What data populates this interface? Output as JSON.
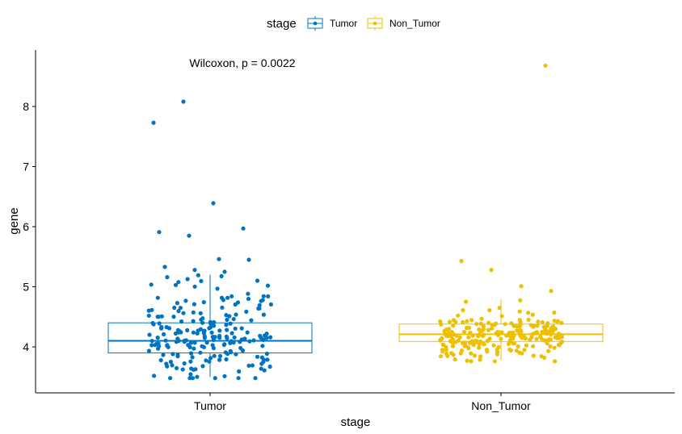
{
  "chart_data": {
    "type": "box",
    "title": "",
    "xlabel": "stage",
    "ylabel": "gene",
    "categories": [
      "Tumor",
      "Non_Tumor"
    ],
    "ylim": [
      3.3,
      8.95
    ],
    "yticks": [
      4,
      5,
      6,
      7,
      8
    ],
    "grid": false,
    "annotation": "Wilcoxon, p = 0.0022",
    "legend": {
      "title": "stage",
      "position": "top",
      "entries": [
        "Tumor",
        "Non_Tumor"
      ]
    },
    "colors": {
      "Tumor": "#0073C2",
      "Non_Tumor": "#EFC000",
      "axis": "#000000",
      "text": "#000000"
    },
    "boxes": [
      {
        "name": "Tumor",
        "q1": 3.9,
        "median": 4.1,
        "q3": 4.4,
        "whisker_low": 3.5,
        "whisker_high": 5.2
      },
      {
        "name": "Non_Tumor",
        "q1": 4.09,
        "median": 4.21,
        "q3": 4.38,
        "whisker_low": 3.78,
        "whisker_high": 4.79
      }
    ],
    "outliers": [
      {
        "group": "Tumor",
        "y": 7.73
      },
      {
        "group": "Tumor",
        "y": 8.08
      },
      {
        "group": "Tumor",
        "y": 6.39
      },
      {
        "group": "Tumor",
        "y": 5.97
      },
      {
        "group": "Tumor",
        "y": 5.91
      },
      {
        "group": "Tumor",
        "y": 5.85
      },
      {
        "group": "Tumor",
        "y": 5.46
      },
      {
        "group": "Tumor",
        "y": 5.45
      },
      {
        "group": "Tumor",
        "y": 5.33
      },
      {
        "group": "Tumor",
        "y": 5.28
      },
      {
        "group": "Tumor",
        "y": 5.25
      },
      {
        "group": "Non_Tumor",
        "y": 8.68
      },
      {
        "group": "Non_Tumor",
        "y": 5.43
      },
      {
        "group": "Non_Tumor",
        "y": 5.28
      },
      {
        "group": "Non_Tumor",
        "y": 5.01
      },
      {
        "group": "Non_Tumor",
        "y": 4.93
      },
      {
        "group": "Non_Tumor",
        "y": 3.77
      }
    ],
    "jitter_points": {
      "Tumor": 215,
      "Non_Tumor": 225
    }
  }
}
